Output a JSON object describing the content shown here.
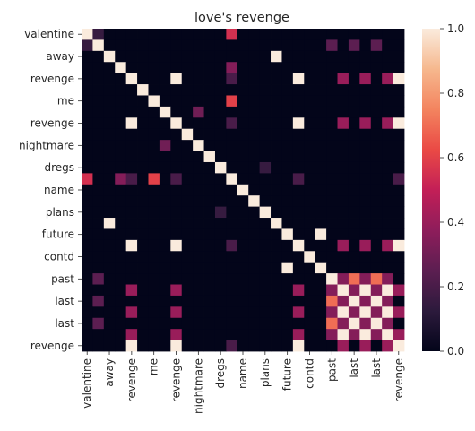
{
  "chart_data": {
    "type": "heatmap",
    "title": "love's revenge",
    "xlabel": "",
    "ylabel": "",
    "tick_labels": [
      "valentine",
      "away",
      "revenge",
      "me",
      "revenge",
      "nightmare",
      "dregs",
      "name",
      "plans",
      "future",
      "contd",
      "past",
      "last",
      "last",
      "revenge"
    ],
    "colorbar": {
      "range": [
        0,
        1
      ],
      "ticks": [
        "0.0",
        "0.2",
        "0.4",
        "0.6",
        "0.8",
        "1.0"
      ],
      "colormap": "rocket",
      "stops": [
        "#03051a",
        "#2c1a3c",
        "#5c1e51",
        "#8e1d5b",
        "#c31f57",
        "#ea4a45",
        "#f3845f",
        "#f6b88e",
        "#faebdd"
      ]
    },
    "matrix_size": 29,
    "nonzero_cells": [
      [
        0,
        0,
        1
      ],
      [
        0,
        1,
        0.15
      ],
      [
        0,
        13,
        0.55
      ],
      [
        1,
        0,
        0.15
      ],
      [
        1,
        1,
        1
      ],
      [
        1,
        22,
        0.25
      ],
      [
        1,
        24,
        0.25
      ],
      [
        1,
        26,
        0.25
      ],
      [
        2,
        2,
        1
      ],
      [
        2,
        17,
        1
      ],
      [
        3,
        3,
        1
      ],
      [
        3,
        13,
        0.35
      ],
      [
        4,
        4,
        1
      ],
      [
        4,
        8,
        1
      ],
      [
        4,
        13,
        0.2
      ],
      [
        4,
        19,
        1
      ],
      [
        4,
        23,
        0.4
      ],
      [
        4,
        25,
        0.4
      ],
      [
        4,
        27,
        0.4
      ],
      [
        4,
        28,
        1
      ],
      [
        5,
        5,
        1
      ],
      [
        6,
        6,
        1
      ],
      [
        6,
        13,
        0.6
      ],
      [
        7,
        7,
        1
      ],
      [
        7,
        10,
        0.3
      ],
      [
        8,
        4,
        1
      ],
      [
        8,
        8,
        1
      ],
      [
        8,
        13,
        0.2
      ],
      [
        8,
        19,
        1
      ],
      [
        8,
        23,
        0.4
      ],
      [
        8,
        25,
        0.4
      ],
      [
        8,
        27,
        0.4
      ],
      [
        8,
        28,
        1
      ],
      [
        9,
        9,
        1
      ],
      [
        10,
        7,
        0.3
      ],
      [
        10,
        10,
        1
      ],
      [
        11,
        11,
        1
      ],
      [
        12,
        12,
        1
      ],
      [
        12,
        16,
        0.15
      ],
      [
        13,
        0,
        0.55
      ],
      [
        13,
        3,
        0.35
      ],
      [
        13,
        4,
        0.2
      ],
      [
        13,
        6,
        0.6
      ],
      [
        13,
        8,
        0.2
      ],
      [
        13,
        13,
        1
      ],
      [
        13,
        19,
        0.2
      ],
      [
        13,
        28,
        0.2
      ],
      [
        14,
        14,
        1
      ],
      [
        15,
        15,
        1
      ],
      [
        16,
        12,
        0.15
      ],
      [
        16,
        16,
        1
      ],
      [
        17,
        2,
        1
      ],
      [
        17,
        17,
        1
      ],
      [
        18,
        18,
        1
      ],
      [
        18,
        21,
        1
      ],
      [
        19,
        4,
        1
      ],
      [
        19,
        8,
        1
      ],
      [
        19,
        13,
        0.2
      ],
      [
        19,
        19,
        1
      ],
      [
        19,
        23,
        0.4
      ],
      [
        19,
        25,
        0.4
      ],
      [
        19,
        27,
        0.4
      ],
      [
        19,
        28,
        1
      ],
      [
        20,
        20,
        1
      ],
      [
        21,
        18,
        1
      ],
      [
        21,
        21,
        1
      ],
      [
        22,
        1,
        0.25
      ],
      [
        22,
        22,
        1
      ],
      [
        22,
        23,
        0.35
      ],
      [
        22,
        24,
        0.7
      ],
      [
        22,
        25,
        0.35
      ],
      [
        22,
        26,
        0.7
      ],
      [
        22,
        27,
        0.35
      ],
      [
        23,
        4,
        0.4
      ],
      [
        23,
        8,
        0.4
      ],
      [
        23,
        19,
        0.4
      ],
      [
        23,
        22,
        0.35
      ],
      [
        23,
        23,
        1
      ],
      [
        23,
        24,
        0.35
      ],
      [
        23,
        25,
        1
      ],
      [
        23,
        26,
        0.35
      ],
      [
        23,
        27,
        1
      ],
      [
        23,
        28,
        0.4
      ],
      [
        24,
        1,
        0.25
      ],
      [
        24,
        22,
        0.7
      ],
      [
        24,
        23,
        0.35
      ],
      [
        24,
        24,
        1
      ],
      [
        24,
        25,
        0.35
      ],
      [
        24,
        26,
        1
      ],
      [
        24,
        27,
        0.35
      ],
      [
        25,
        4,
        0.4
      ],
      [
        25,
        8,
        0.4
      ],
      [
        25,
        19,
        0.4
      ],
      [
        25,
        22,
        0.35
      ],
      [
        25,
        23,
        1
      ],
      [
        25,
        24,
        0.35
      ],
      [
        25,
        25,
        1
      ],
      [
        25,
        26,
        0.35
      ],
      [
        25,
        27,
        1
      ],
      [
        25,
        28,
        0.4
      ],
      [
        26,
        1,
        0.25
      ],
      [
        26,
        22,
        0.7
      ],
      [
        26,
        23,
        0.35
      ],
      [
        26,
        24,
        1
      ],
      [
        26,
        25,
        0.35
      ],
      [
        26,
        26,
        1
      ],
      [
        26,
        27,
        0.35
      ],
      [
        27,
        4,
        0.4
      ],
      [
        27,
        8,
        0.4
      ],
      [
        27,
        19,
        0.4
      ],
      [
        27,
        22,
        0.35
      ],
      [
        27,
        23,
        1
      ],
      [
        27,
        24,
        0.35
      ],
      [
        27,
        25,
        1
      ],
      [
        27,
        26,
        0.35
      ],
      [
        27,
        27,
        1
      ],
      [
        27,
        28,
        0.4
      ],
      [
        28,
        4,
        1
      ],
      [
        28,
        8,
        1
      ],
      [
        28,
        13,
        0.2
      ],
      [
        28,
        19,
        1
      ],
      [
        28,
        23,
        0.4
      ],
      [
        28,
        25,
        0.4
      ],
      [
        28,
        27,
        0.4
      ],
      [
        28,
        28,
        1
      ]
    ]
  }
}
